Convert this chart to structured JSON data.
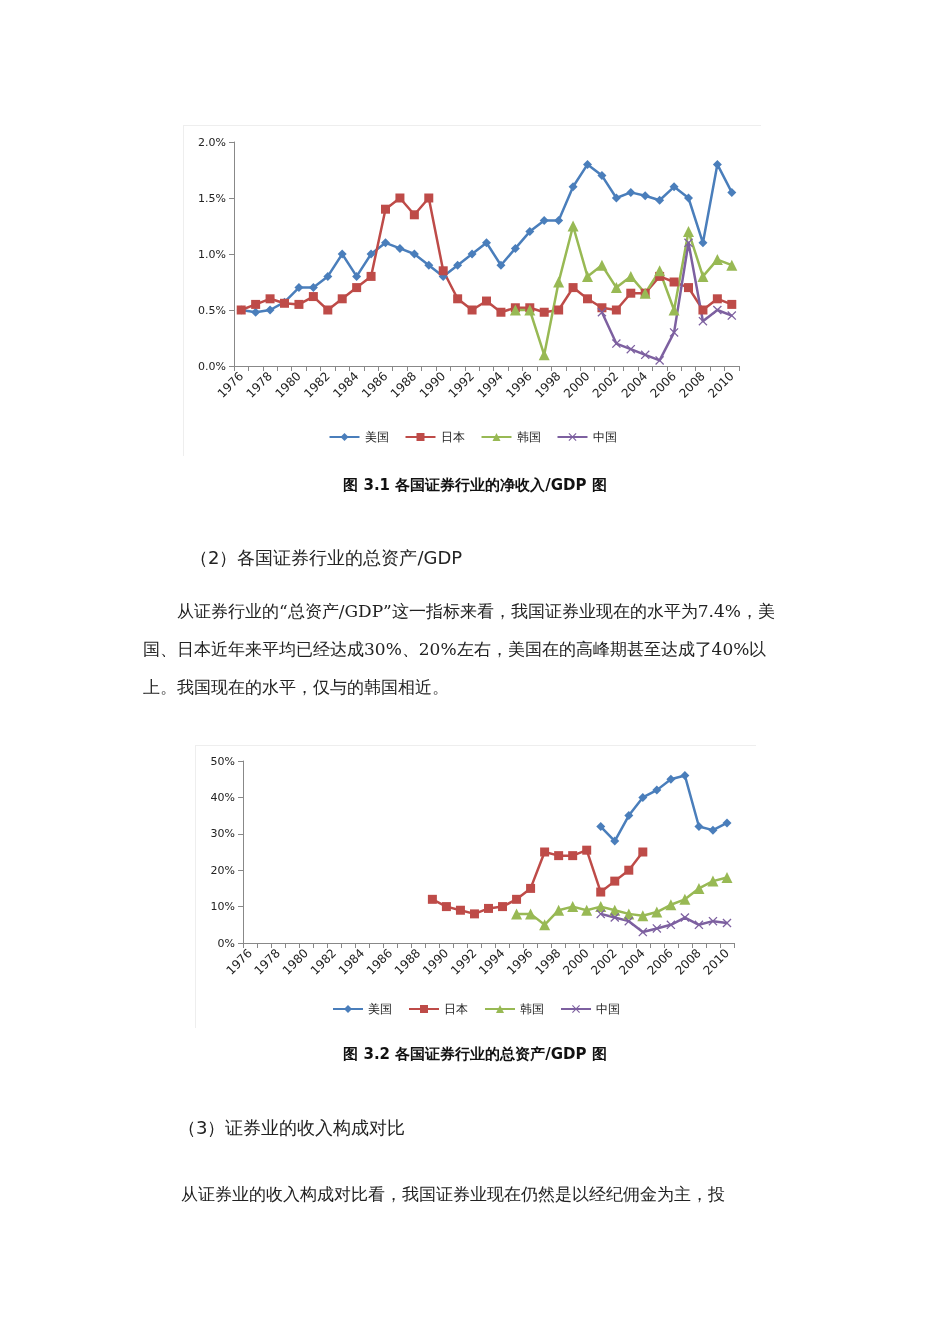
{
  "chart_data": [
    {
      "type": "line",
      "title": "图 3.1  各国证券行业的净收入/GDP 图",
      "categories": [
        "1976",
        null,
        "1978",
        null,
        "1980",
        null,
        "1982",
        null,
        "1984",
        null,
        "1986",
        null,
        "1988",
        null,
        "1990",
        null,
        "1992",
        null,
        "1994",
        null,
        "1996",
        null,
        "1998",
        null,
        "2000",
        null,
        "2002",
        null,
        "2004",
        null,
        "2006",
        null,
        "2008",
        null,
        "2010"
      ],
      "series": [
        {
          "name": "美国",
          "color": "#4a7ebb",
          "marker": "diamond",
          "values": [
            0.5,
            0.48,
            0.5,
            0.57,
            0.7,
            0.7,
            0.8,
            1.0,
            0.8,
            1.0,
            1.1,
            1.05,
            1.0,
            0.9,
            0.8,
            0.9,
            1.0,
            1.1,
            0.9,
            1.05,
            1.2,
            1.3,
            1.3,
            1.6,
            1.8,
            1.7,
            1.5,
            1.55,
            1.52,
            1.48,
            1.6,
            1.5,
            1.1,
            1.8,
            1.55
          ]
        },
        {
          "name": "日本",
          "color": "#be4b48",
          "marker": "square",
          "values": [
            0.5,
            0.55,
            0.6,
            0.56,
            0.55,
            0.62,
            0.5,
            0.6,
            0.7,
            0.8,
            1.4,
            1.5,
            1.35,
            1.5,
            0.85,
            0.6,
            0.5,
            0.58,
            0.48,
            0.52,
            0.52,
            0.48,
            0.5,
            0.7,
            0.6,
            0.52,
            0.5,
            0.65,
            0.65,
            0.8,
            0.75,
            0.7,
            0.5,
            0.6,
            0.55
          ]
        },
        {
          "name": "韩国",
          "color": "#98b954",
          "marker": "triangle",
          "values": [
            null,
            null,
            null,
            null,
            null,
            null,
            null,
            null,
            null,
            null,
            null,
            null,
            null,
            null,
            null,
            null,
            null,
            null,
            null,
            0.5,
            0.5,
            0.1,
            0.75,
            1.25,
            0.8,
            0.9,
            0.7,
            0.8,
            0.65,
            0.85,
            0.5,
            1.2,
            0.8,
            0.95,
            0.9
          ]
        },
        {
          "name": "中国",
          "color": "#7d60a0",
          "marker": "cross",
          "values": [
            null,
            null,
            null,
            null,
            null,
            null,
            null,
            null,
            null,
            null,
            null,
            null,
            null,
            null,
            null,
            null,
            null,
            null,
            null,
            null,
            null,
            null,
            null,
            null,
            null,
            0.48,
            0.2,
            0.15,
            0.1,
            0.05,
            0.3,
            1.1,
            0.4,
            0.5,
            0.45
          ]
        }
      ],
      "ylim": [
        0,
        2
      ],
      "yticks": [
        {
          "value": 0,
          "label": "0.0%"
        },
        {
          "value": 0.5,
          "label": "0.5%"
        },
        {
          "value": 1,
          "label": "1.0%"
        },
        {
          "value": 1.5,
          "label": "1.5%"
        },
        {
          "value": 2,
          "label": "2.0%"
        }
      ],
      "grid": false,
      "legend": "bottom",
      "line_style": "solid",
      "annotations": [
        "（2）各国证券行业的总资产/GDP",
        "从证券行业的“总资产/GDP”这一指标来看，我国证券业现在的水平为7.4%，美国、日本近年来平均已经达成30%、20%左右，美国在的高峰期甚至达成了40%以上。我国现在的水平，仅与的韩国相近。"
      ]
    },
    {
      "type": "line",
      "title": "图 3.2  各国证券行业的总资产/GDP 图",
      "categories": [
        "1976",
        null,
        "1978",
        null,
        "1980",
        null,
        "1982",
        null,
        "1984",
        null,
        "1986",
        null,
        "1988",
        null,
        "1990",
        null,
        "1992",
        null,
        "1994",
        null,
        "1996",
        null,
        "1998",
        null,
        "2000",
        null,
        "2002",
        null,
        "2004",
        null,
        "2006",
        null,
        "2008",
        null,
        "2010"
      ],
      "series": [
        {
          "name": "美国",
          "color": "#4a7ebb",
          "marker": "diamond",
          "values": [
            null,
            null,
            null,
            null,
            null,
            null,
            null,
            null,
            null,
            null,
            null,
            null,
            null,
            null,
            null,
            null,
            null,
            null,
            null,
            null,
            null,
            null,
            null,
            null,
            null,
            32,
            28,
            35,
            40,
            42,
            45,
            46,
            32,
            31,
            33
          ]
        },
        {
          "name": "日本",
          "color": "#be4b48",
          "marker": "square",
          "values": [
            null,
            null,
            null,
            null,
            null,
            null,
            null,
            null,
            null,
            null,
            null,
            null,
            null,
            12,
            10,
            9,
            8,
            9.5,
            10,
            12,
            15,
            25,
            24,
            24,
            25.5,
            14,
            17,
            20,
            25,
            null,
            null,
            null,
            null,
            null,
            null
          ]
        },
        {
          "name": "韩国",
          "color": "#98b954",
          "marker": "triangle",
          "values": [
            null,
            null,
            null,
            null,
            null,
            null,
            null,
            null,
            null,
            null,
            null,
            null,
            null,
            null,
            null,
            null,
            null,
            null,
            null,
            8,
            8,
            5,
            9,
            10,
            9,
            10,
            9,
            8,
            7.5,
            8.5,
            10.5,
            12,
            15,
            17,
            18
          ]
        },
        {
          "name": "中国",
          "color": "#7d60a0",
          "marker": "cross",
          "values": [
            null,
            null,
            null,
            null,
            null,
            null,
            null,
            null,
            null,
            null,
            null,
            null,
            null,
            null,
            null,
            null,
            null,
            null,
            null,
            null,
            null,
            null,
            null,
            null,
            null,
            8,
            7,
            6,
            3,
            4,
            5,
            7,
            5,
            6,
            5.5
          ]
        }
      ],
      "ylim": [
        0,
        50
      ],
      "yticks": [
        {
          "value": 0,
          "label": "0%"
        },
        {
          "value": 10,
          "label": "10%"
        },
        {
          "value": 20,
          "label": "20%"
        },
        {
          "value": 30,
          "label": "30%"
        },
        {
          "value": 40,
          "label": "40%"
        },
        {
          "value": 50,
          "label": "50%"
        }
      ],
      "grid": false,
      "legend": "bottom",
      "line_style": "solid",
      "annotations": [
        "（3）证券业的收入构成对比",
        "从证券业的收入构成对比看，我国证券业现在仍然是以经纪佣金为主，投"
      ]
    }
  ]
}
